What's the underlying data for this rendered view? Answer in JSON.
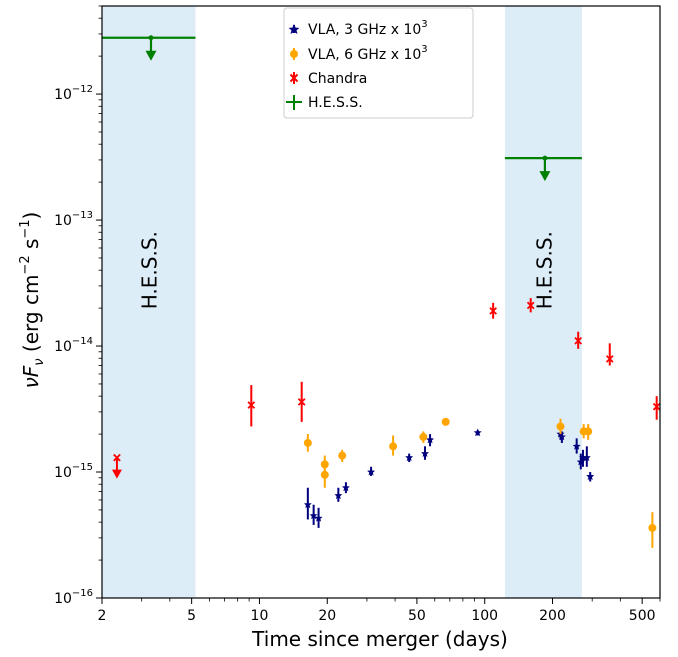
{
  "chart_data": {
    "type": "scatter",
    "xlabel": "Time since merger (days)",
    "ylabel": "νF_ν (erg cm⁻² s⁻¹)",
    "ylabel_parts": {
      "main": "νF",
      "sub": "ν",
      "units_a": " (erg cm",
      "exp_a": "−2",
      "units_b": " s",
      "exp_b": "−1",
      "units_c": ")"
    },
    "x_scale": "log",
    "y_scale": "log",
    "xlim": [
      2,
      600
    ],
    "ylim": [
      1e-16,
      5e-12
    ],
    "x_ticks": [
      {
        "value": 2,
        "label": "2"
      },
      {
        "value": 5,
        "label": "5"
      },
      {
        "value": 10,
        "label": "10"
      },
      {
        "value": 20,
        "label": "20"
      },
      {
        "value": 50,
        "label": "50"
      },
      {
        "value": 100,
        "label": "100"
      },
      {
        "value": 200,
        "label": "200"
      },
      {
        "value": 500,
        "label": "500"
      }
    ],
    "y_ticks": [
      {
        "value": 1e-16,
        "base": "10",
        "exp": "−16"
      },
      {
        "value": 1e-15,
        "base": "10",
        "exp": "−15"
      },
      {
        "value": 1e-14,
        "base": "10",
        "exp": "−14"
      },
      {
        "value": 1e-13,
        "base": "10",
        "exp": "−13"
      },
      {
        "value": 1e-12,
        "base": "10",
        "exp": "−12"
      }
    ],
    "shaded_regions": [
      {
        "x0": 2,
        "x1": 5.2,
        "label": "H.E.S.S.",
        "label_y": 4e-14,
        "color": "#dcedf8"
      },
      {
        "x0": 123,
        "x1": 270,
        "label": "H.E.S.S.",
        "label_y": 4e-14,
        "color": "#dcedf8"
      }
    ],
    "legend": {
      "position": "top-center"
    },
    "series": [
      {
        "name": "VLA, 3 GHz x 10",
        "name_exp": "3",
        "color": "#00007f",
        "marker": "star",
        "points": [
          {
            "x": 16.4,
            "y": 5.5e-16,
            "ylo": 4.2e-16,
            "yhi": 7.5e-16
          },
          {
            "x": 17.4,
            "y": 4.5e-16,
            "ylo": 3.8e-16,
            "yhi": 5.5e-16
          },
          {
            "x": 18.3,
            "y": 4.3e-16,
            "ylo": 3.6e-16,
            "yhi": 5.2e-16
          },
          {
            "x": 22.4,
            "y": 6.5e-16,
            "ylo": 5.8e-16,
            "yhi": 7.5e-16
          },
          {
            "x": 24.2,
            "y": 7.5e-16,
            "ylo": 6.8e-16,
            "yhi": 8.3e-16
          },
          {
            "x": 31.3,
            "y": 1e-15,
            "ylo": 9.3e-16,
            "yhi": 1.1e-15
          },
          {
            "x": 46.2,
            "y": 1.3e-15,
            "ylo": 1.2e-15,
            "yhi": 1.4e-15
          },
          {
            "x": 54.3,
            "y": 1.4e-15,
            "ylo": 1.25e-15,
            "yhi": 1.6e-15
          },
          {
            "x": 57.2,
            "y": 1.8e-15,
            "ylo": 1.6e-15,
            "yhi": 2e-15
          },
          {
            "x": 93.1,
            "y": 2.05e-15,
            "ylo": 1.95e-15,
            "yhi": 2.15e-15
          },
          {
            "x": 217,
            "y": 2e-15,
            "ylo": 1.8e-15,
            "yhi": 2.2e-15
          },
          {
            "x": 220,
            "y": 1.9e-15,
            "ylo": 1.7e-15,
            "yhi": 2.1e-15
          },
          {
            "x": 256,
            "y": 1.6e-15,
            "ylo": 1.4e-15,
            "yhi": 1.85e-15
          },
          {
            "x": 267,
            "y": 1.2e-15,
            "ylo": 1.05e-15,
            "yhi": 1.4e-15
          },
          {
            "x": 273,
            "y": 1.3e-15,
            "ylo": 1.1e-15,
            "yhi": 1.5e-15
          },
          {
            "x": 284,
            "y": 1.3e-15,
            "ylo": 1.1e-15,
            "yhi": 1.6e-15
          },
          {
            "x": 294,
            "y": 9.2e-16,
            "ylo": 8.4e-16,
            "yhi": 1e-15
          }
        ]
      },
      {
        "name": "VLA, 6 GHz x 10",
        "name_exp": "3",
        "color": "#ffa500",
        "marker": "circle",
        "points": [
          {
            "x": 16.4,
            "y": 1.7e-15,
            "ylo": 1.45e-15,
            "yhi": 2e-15
          },
          {
            "x": 19.5,
            "y": 1.15e-15,
            "ylo": 9.5e-16,
            "yhi": 1.35e-15
          },
          {
            "x": 19.5,
            "y": 9.5e-16,
            "ylo": 7.5e-16,
            "yhi": 1.2e-15
          },
          {
            "x": 23.3,
            "y": 1.35e-15,
            "ylo": 1.2e-15,
            "yhi": 1.5e-15
          },
          {
            "x": 39.2,
            "y": 1.6e-15,
            "ylo": 1.35e-15,
            "yhi": 1.95e-15
          },
          {
            "x": 53.4,
            "y": 1.9e-15,
            "ylo": 1.7e-15,
            "yhi": 2.1e-15
          },
          {
            "x": 67.1,
            "y": 2.5e-15,
            "ylo": 2.35e-15,
            "yhi": 2.65e-15
          },
          {
            "x": 217,
            "y": 2.3e-15,
            "ylo": 2e-15,
            "yhi": 2.65e-15
          },
          {
            "x": 275,
            "y": 2.1e-15,
            "ylo": 1.85e-15,
            "yhi": 2.4e-15
          },
          {
            "x": 288,
            "y": 2.1e-15,
            "ylo": 1.8e-15,
            "yhi": 2.4e-15
          },
          {
            "x": 555,
            "y": 3.6e-16,
            "ylo": 2.5e-16,
            "yhi": 4.8e-16
          }
        ]
      },
      {
        "name": "Chandra",
        "color": "#ff0000",
        "marker": "x",
        "points": [
          {
            "x": 2.33,
            "y": 1.3e-15,
            "upper_limit": true
          },
          {
            "x": 9.2,
            "y": 3.4e-15,
            "ylo": 2.3e-15,
            "yhi": 4.9e-15
          },
          {
            "x": 15.4,
            "y": 3.6e-15,
            "ylo": 2.5e-15,
            "yhi": 5.2e-15
          },
          {
            "x": 109,
            "y": 1.9e-14,
            "ylo": 1.65e-14,
            "yhi": 2.2e-14
          },
          {
            "x": 160,
            "y": 2.1e-14,
            "ylo": 1.85e-14,
            "yhi": 2.4e-14
          },
          {
            "x": 260,
            "y": 1.1e-14,
            "ylo": 9.5e-15,
            "yhi": 1.3e-14
          },
          {
            "x": 359,
            "y": 7.9e-15,
            "ylo": 7e-15,
            "yhi": 1.05e-14
          },
          {
            "x": 580,
            "y": 3.3e-15,
            "ylo": 2.6e-15,
            "yhi": 4e-15
          }
        ]
      },
      {
        "name": "H.E.S.S.",
        "color": "#008000",
        "marker": "upper-limit-bar",
        "points": [
          {
            "x": 3.3,
            "y": 2.8e-12,
            "xlo": 2,
            "xhi": 5.2,
            "upper_limit": true
          },
          {
            "x": 185,
            "y": 3.1e-13,
            "xlo": 123,
            "xhi": 270,
            "upper_limit": true
          }
        ]
      }
    ]
  }
}
